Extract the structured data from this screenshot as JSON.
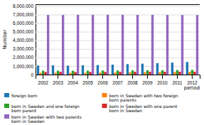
{
  "chart_data": {
    "type": "bar",
    "categories": [
      "2002",
      "2003",
      "2004",
      "2005",
      "2006",
      "2007",
      "2008",
      "2009",
      "2010",
      "2011",
      "2012"
    ],
    "series": [
      {
        "name": "foreign born",
        "values": [
          1050000,
          1070000,
          1040000,
          1080000,
          1110000,
          1160000,
          1220000,
          1270000,
          1330000,
          1400000,
          1470000
        ]
      },
      {
        "name": "born in Sweden with two foreign\nborn parents",
        "values": [
          200000,
          210000,
          200000,
          210000,
          220000,
          230000,
          250000,
          270000,
          280000,
          300000,
          320000
        ]
      },
      {
        "name": "born in Sweden and one foreign\nborn parent",
        "values": [
          450000,
          460000,
          450000,
          460000,
          470000,
          480000,
          490000,
          500000,
          510000,
          530000,
          550000
        ]
      },
      {
        "name": "born in Sweden with one parent\nborn in Sweden",
        "values": [
          300000,
          310000,
          290000,
          300000,
          310000,
          320000,
          330000,
          330000,
          330000,
          330000,
          335000
        ]
      },
      {
        "name": "born in Sweden with two parents\nborn in Sweden",
        "values": [
          6950000,
          6950000,
          6970000,
          6970000,
          6980000,
          6970000,
          6960000,
          6960000,
          6950000,
          6950000,
          6940000
        ]
      }
    ],
    "xlabel": "period",
    "ylabel": "Number",
    "ylim": [
      0,
      8200000
    ],
    "yticks": [
      0,
      {
        "value": 1000000,
        "label": "1,000,000"
      },
      {
        "value": 2000000,
        "label": "2,000,000"
      },
      {
        "value": 3000000,
        "label": "3,000,000"
      },
      {
        "value": 4000000,
        "label": "4,000,000"
      },
      {
        "value": 5000000,
        "label": "5,000,000"
      },
      {
        "value": 6000000,
        "label": "6,000,000"
      },
      {
        "value": 7000000,
        "label": "7,000,000"
      },
      {
        "value": 8000000,
        "label": "8,000,000"
      }
    ],
    "grid": true,
    "legend": "bottom"
  }
}
